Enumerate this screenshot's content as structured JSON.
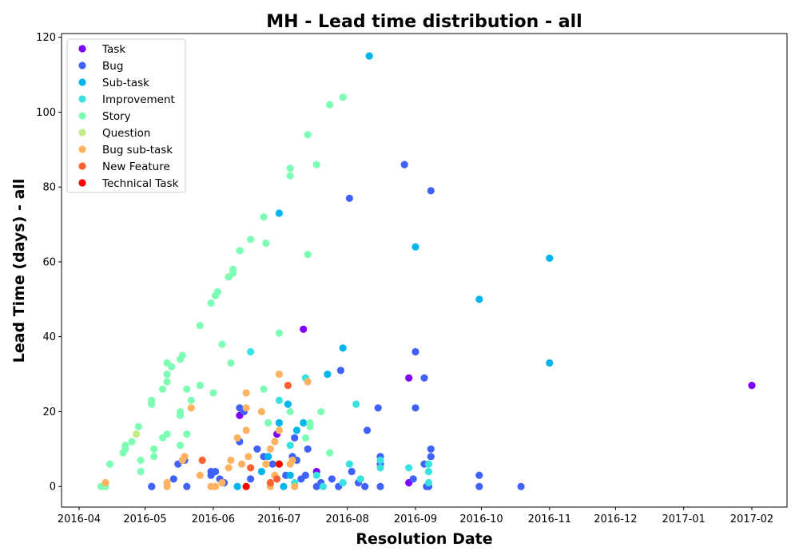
{
  "chart_data": {
    "type": "scatter",
    "title": "MH - Lead time distribution - all",
    "xlabel": "Resolution Date",
    "ylabel": "Lead Time (days) - all",
    "xlim": [
      "2016-03-24",
      "2017-02-17"
    ],
    "ylim": [
      -5.5,
      121
    ],
    "x_ticks": [
      "2016-04",
      "2016-05",
      "2016-06",
      "2016-07",
      "2016-08",
      "2016-09",
      "2016-10",
      "2016-11",
      "2016-12",
      "2017-01",
      "2017-02"
    ],
    "y_ticks": [
      0,
      20,
      40,
      60,
      80,
      100,
      120
    ],
    "grid": false,
    "legend_position": "top-left",
    "series": [
      {
        "name": "Task",
        "color": "#8000ff",
        "points": [
          [
            "2016-06-13",
            19
          ],
          [
            "2016-06-30",
            14
          ],
          [
            "2016-07-12",
            42
          ],
          [
            "2016-07-18",
            4
          ],
          [
            "2016-08-29",
            29
          ],
          [
            "2016-08-29",
            1
          ],
          [
            "2017-02-01",
            27
          ]
        ]
      },
      {
        "name": "Bug",
        "color": "#4062fa",
        "points": [
          [
            "2016-05-04",
            0
          ],
          [
            "2016-05-04",
            0
          ],
          [
            "2016-05-14",
            2
          ],
          [
            "2016-05-16",
            6
          ],
          [
            "2016-05-19",
            7
          ],
          [
            "2016-05-20",
            0
          ],
          [
            "2016-05-31",
            3
          ],
          [
            "2016-05-31",
            4
          ],
          [
            "2016-06-02",
            4
          ],
          [
            "2016-06-04",
            2
          ],
          [
            "2016-06-06",
            1
          ],
          [
            "2016-06-13",
            12
          ],
          [
            "2016-06-13",
            21
          ],
          [
            "2016-06-15",
            20
          ],
          [
            "2016-06-18",
            2
          ],
          [
            "2016-06-21",
            10
          ],
          [
            "2016-06-24",
            8
          ],
          [
            "2016-06-28",
            6
          ],
          [
            "2016-06-30",
            2
          ],
          [
            "2016-07-04",
            3
          ],
          [
            "2016-07-07",
            8
          ],
          [
            "2016-07-08",
            13
          ],
          [
            "2016-07-09",
            7
          ],
          [
            "2016-07-11",
            2
          ],
          [
            "2016-07-13",
            3
          ],
          [
            "2016-07-14",
            10
          ],
          [
            "2016-07-18",
            0
          ],
          [
            "2016-07-20",
            1
          ],
          [
            "2016-07-25",
            2
          ],
          [
            "2016-07-28",
            0
          ],
          [
            "2016-07-29",
            31
          ],
          [
            "2016-08-02",
            77
          ],
          [
            "2016-08-03",
            4
          ],
          [
            "2016-08-06",
            1
          ],
          [
            "2016-08-09",
            0
          ],
          [
            "2016-08-10",
            15
          ],
          [
            "2016-08-15",
            21
          ],
          [
            "2016-08-16",
            8
          ],
          [
            "2016-08-16",
            6
          ],
          [
            "2016-08-16",
            0
          ],
          [
            "2016-08-27",
            86
          ],
          [
            "2016-08-31",
            2
          ],
          [
            "2016-09-01",
            21
          ],
          [
            "2016-09-01",
            36
          ],
          [
            "2016-09-05",
            29
          ],
          [
            "2016-09-05",
            6
          ],
          [
            "2016-09-06",
            0
          ],
          [
            "2016-09-08",
            79
          ],
          [
            "2016-09-08",
            10
          ],
          [
            "2016-09-08",
            8
          ],
          [
            "2016-09-07",
            0
          ],
          [
            "2016-09-30",
            3
          ],
          [
            "2016-09-30",
            0
          ],
          [
            "2016-10-19",
            0
          ]
        ]
      },
      {
        "name": "Sub-task",
        "color": "#00b4ec",
        "points": [
          [
            "2016-06-12",
            0
          ],
          [
            "2016-06-23",
            4
          ],
          [
            "2016-06-26",
            8
          ],
          [
            "2016-07-01",
            73
          ],
          [
            "2016-07-01",
            17
          ],
          [
            "2016-07-03",
            0
          ],
          [
            "2016-07-05",
            22
          ],
          [
            "2016-07-06",
            3
          ],
          [
            "2016-07-09",
            15
          ],
          [
            "2016-07-12",
            17
          ],
          [
            "2016-07-23",
            30
          ],
          [
            "2016-07-30",
            37
          ],
          [
            "2016-08-11",
            115
          ],
          [
            "2016-09-01",
            64
          ],
          [
            "2016-09-30",
            50
          ],
          [
            "2016-11-01",
            61
          ],
          [
            "2016-11-01",
            33
          ]
        ]
      },
      {
        "name": "Improvement",
        "color": "#38e2e0",
        "points": [
          [
            "2016-06-18",
            36
          ],
          [
            "2016-07-01",
            23
          ],
          [
            "2016-07-06",
            11
          ],
          [
            "2016-07-08",
            1
          ],
          [
            "2016-07-13",
            29
          ],
          [
            "2016-07-18",
            3
          ],
          [
            "2016-07-21",
            0
          ],
          [
            "2016-07-30",
            1
          ],
          [
            "2016-08-02",
            6
          ],
          [
            "2016-08-05",
            22
          ],
          [
            "2016-08-07",
            2
          ],
          [
            "2016-08-16",
            7
          ],
          [
            "2016-08-16",
            5
          ],
          [
            "2016-08-29",
            5
          ],
          [
            "2016-09-07",
            6
          ],
          [
            "2016-09-07",
            4
          ],
          [
            "2016-09-07",
            1
          ]
        ]
      },
      {
        "name": "Story",
        "color": "#7efdb4",
        "points": [
          [
            "2016-04-11",
            0
          ],
          [
            "2016-04-13",
            0
          ],
          [
            "2016-04-15",
            6
          ],
          [
            "2016-04-21",
            9
          ],
          [
            "2016-04-22",
            10
          ],
          [
            "2016-04-22",
            11
          ],
          [
            "2016-04-25",
            12
          ],
          [
            "2016-04-28",
            16
          ],
          [
            "2016-04-29",
            4
          ],
          [
            "2016-04-29",
            7
          ],
          [
            "2016-05-04",
            22
          ],
          [
            "2016-05-04",
            23
          ],
          [
            "2016-05-05",
            8
          ],
          [
            "2016-05-05",
            10
          ],
          [
            "2016-05-09",
            26
          ],
          [
            "2016-05-09",
            13
          ],
          [
            "2016-05-11",
            33
          ],
          [
            "2016-05-11",
            30
          ],
          [
            "2016-05-11",
            28
          ],
          [
            "2016-05-11",
            14
          ],
          [
            "2016-05-13",
            32
          ],
          [
            "2016-05-17",
            34
          ],
          [
            "2016-05-18",
            35
          ],
          [
            "2016-05-17",
            20
          ],
          [
            "2016-05-17",
            19
          ],
          [
            "2016-05-17",
            11
          ],
          [
            "2016-05-20",
            26
          ],
          [
            "2016-05-20",
            14
          ],
          [
            "2016-05-22",
            23
          ],
          [
            "2016-05-26",
            43
          ],
          [
            "2016-05-26",
            27
          ],
          [
            "2016-05-31",
            49
          ],
          [
            "2016-06-01",
            25
          ],
          [
            "2016-06-02",
            51
          ],
          [
            "2016-06-03",
            52
          ],
          [
            "2016-06-05",
            38
          ],
          [
            "2016-06-08",
            56
          ],
          [
            "2016-06-10",
            57
          ],
          [
            "2016-06-10",
            58
          ],
          [
            "2016-06-09",
            33
          ],
          [
            "2016-06-13",
            63
          ],
          [
            "2016-06-18",
            66
          ],
          [
            "2016-06-24",
            72
          ],
          [
            "2016-06-25",
            65
          ],
          [
            "2016-06-24",
            26
          ],
          [
            "2016-06-26",
            17
          ],
          [
            "2016-07-01",
            41
          ],
          [
            "2016-07-06",
            85
          ],
          [
            "2016-07-06",
            83
          ],
          [
            "2016-07-06",
            20
          ],
          [
            "2016-07-14",
            94
          ],
          [
            "2016-07-14",
            62
          ],
          [
            "2016-07-15",
            17
          ],
          [
            "2016-07-15",
            16
          ],
          [
            "2016-07-18",
            86
          ],
          [
            "2016-07-20",
            20
          ],
          [
            "2016-07-24",
            102
          ],
          [
            "2016-07-24",
            9
          ],
          [
            "2016-07-30",
            104
          ],
          [
            "2016-07-13",
            13
          ]
        ]
      },
      {
        "name": "Question",
        "color": "#c4ec84",
        "points": [
          [
            "2016-04-13",
            1
          ],
          [
            "2016-04-27",
            14
          ]
        ]
      },
      {
        "name": "Bug sub-task",
        "color": "#ffb360",
        "points": [
          [
            "2016-04-13",
            1
          ],
          [
            "2016-05-11",
            1
          ],
          [
            "2016-05-11",
            0
          ],
          [
            "2016-05-18",
            7
          ],
          [
            "2016-05-19",
            8
          ],
          [
            "2016-05-22",
            21
          ],
          [
            "2016-05-26",
            3
          ],
          [
            "2016-05-31",
            0
          ],
          [
            "2016-06-02",
            0
          ],
          [
            "2016-06-05",
            1
          ],
          [
            "2016-06-08",
            5
          ],
          [
            "2016-06-09",
            7
          ],
          [
            "2016-06-12",
            13
          ],
          [
            "2016-06-14",
            6
          ],
          [
            "2016-06-16",
            15
          ],
          [
            "2016-06-16",
            21
          ],
          [
            "2016-06-16",
            25
          ],
          [
            "2016-06-17",
            8
          ],
          [
            "2016-06-23",
            20
          ],
          [
            "2016-06-25",
            6
          ],
          [
            "2016-06-27",
            10
          ],
          [
            "2016-06-27",
            0
          ],
          [
            "2016-06-29",
            12
          ],
          [
            "2016-06-29",
            3
          ],
          [
            "2016-07-01",
            30
          ],
          [
            "2016-07-01",
            15
          ],
          [
            "2016-07-06",
            6
          ],
          [
            "2016-07-07",
            7
          ],
          [
            "2016-07-08",
            0
          ],
          [
            "2016-07-14",
            28
          ]
        ]
      },
      {
        "name": "New Feature",
        "color": "#ff6030",
        "points": [
          [
            "2016-05-27",
            7
          ],
          [
            "2016-06-18",
            5
          ],
          [
            "2016-06-27",
            1
          ],
          [
            "2016-06-30",
            2
          ],
          [
            "2016-07-05",
            27
          ]
        ]
      },
      {
        "name": "Technical Task",
        "color": "#ff0000",
        "points": [
          [
            "2016-06-16",
            0
          ],
          [
            "2016-07-01",
            6
          ]
        ]
      }
    ]
  }
}
